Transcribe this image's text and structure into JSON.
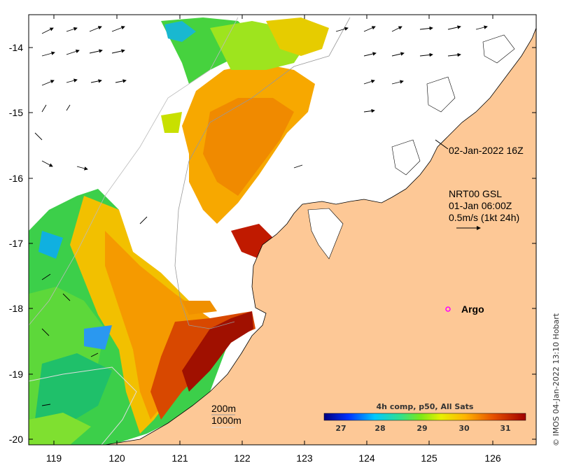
{
  "map": {
    "lat_ticks": [
      "-14",
      "-15",
      "-16",
      "-17",
      "-18",
      "-19",
      "-20"
    ],
    "lon_ticks": [
      "119",
      "120",
      "121",
      "122",
      "123",
      "124",
      "125",
      "126"
    ],
    "lat_range": [
      -20.15,
      -13.5
    ],
    "lon_range": [
      118.6,
      126.75
    ]
  },
  "annotations": {
    "sat_time": "02-Jan-2022 16Z",
    "current_source": "NRT00 GSL",
    "current_time": "01-Jan 06:00Z",
    "current_scale": "0.5m/s (1kt 24h)",
    "isobath_200": "200m",
    "isobath_1000": "1000m",
    "argo_label": "Argo",
    "argo_marker_color": "#ff00ff"
  },
  "colorbar": {
    "title": "4h comp, p50, All Sats",
    "ticks": [
      "27",
      "28",
      "29",
      "30",
      "31"
    ],
    "range": [
      26.4,
      31.6
    ]
  },
  "credit": "© IMOS 04-Jan-2022 13:10 Hobart",
  "colors": {
    "land": "#fdc896",
    "sst_scale": [
      "#00007f",
      "#0032ff",
      "#00c8ff",
      "#32e08c",
      "#7ee817",
      "#e8f000",
      "#ffb400",
      "#e65000",
      "#a00000"
    ]
  }
}
